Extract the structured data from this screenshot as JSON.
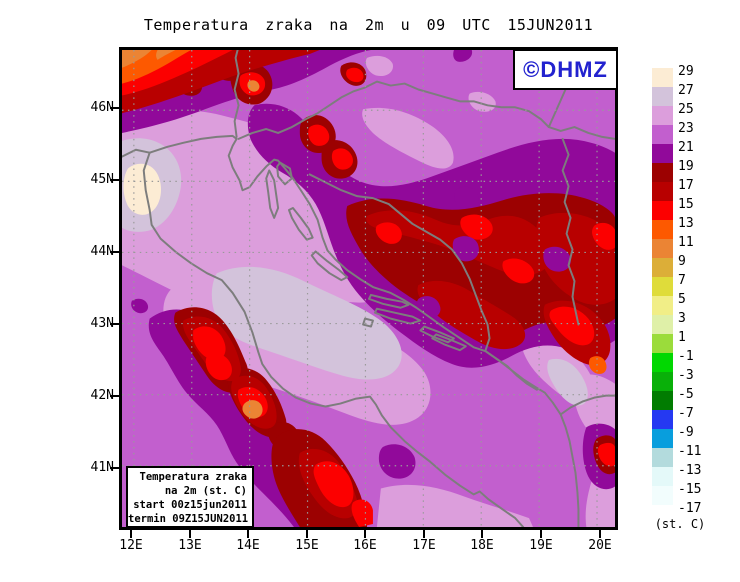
{
  "title": "Temperatura zraka na 2m u 09 UTC 15JUN2011",
  "logo": {
    "text": "©DHMZ",
    "color": "#2222cf"
  },
  "info_box": {
    "lines": [
      "Temperatura zraka",
      "na 2m (st. C)",
      "start 00z15jun2011",
      "termin 09Z15JUN2011"
    ]
  },
  "axes": {
    "lat_ticks": [
      "46N",
      "45N",
      "44N",
      "43N",
      "42N",
      "41N"
    ],
    "lon_ticks": [
      "12E",
      "13E",
      "14E",
      "15E",
      "16E",
      "17E",
      "18E",
      "19E",
      "20E"
    ]
  },
  "colorbar": {
    "unit_label": "(st. C)",
    "levels": [
      29,
      27,
      25,
      23,
      21,
      19,
      17,
      15,
      13,
      11,
      9,
      7,
      5,
      3,
      1,
      -1,
      -3,
      -5,
      -7,
      -9,
      -11,
      -13,
      -15,
      -17
    ],
    "colors": [
      "#fcecd4",
      "#d3c3db",
      "#dc9edc",
      "#c25fce",
      "#91099a",
      "#9c0101",
      "#b80000",
      "#fc0000",
      "#fd5900",
      "#eb8434",
      "#dcae38",
      "#dfdc3a",
      "#f1ee87",
      "#dff0a8",
      "#9bdc3b",
      "#01d801",
      "#09b009",
      "#017c01",
      "#2539f2",
      "#089edd",
      "#b3dbdd",
      "#e4f9f9",
      "#f2fdfd"
    ]
  },
  "map": {
    "coastline_color": "#7d7d7d",
    "grid_color": "#9a9a9a",
    "frame_color": "#000000"
  },
  "chart_data": {
    "type": "heatmap",
    "subtype": "filled_contour_weather_map",
    "title": "Temperatura zraka na 2m u 09 UTC 15JUN2011",
    "variable": "Air temperature at 2 m (st. C)",
    "init_time": "00z15jun2011",
    "valid_time": "09Z15JUN2011",
    "lon_range_deg_e": [
      11.8,
      20.3
    ],
    "lat_range_deg_n": [
      40.2,
      46.8
    ],
    "grid_interval_deg": 1,
    "contour_interval_c": 2,
    "levels_c": [
      -17,
      -15,
      -13,
      -11,
      -9,
      -7,
      -5,
      -3,
      -1,
      1,
      3,
      5,
      7,
      9,
      11,
      13,
      15,
      17,
      19,
      21,
      23,
      25,
      27,
      29
    ],
    "regions": [
      {
        "area": "Po valley, W edge near 12E 45N",
        "temp_c": "27-29"
      },
      {
        "area": "NE Italy / N Adriatic coast",
        "temp_c": "25-27"
      },
      {
        "area": "Central Adriatic sea west of lavender patch",
        "temp_c": "25-27"
      },
      {
        "area": "Adriatic sea and lowland Croatia (background)",
        "temp_c": "21-25"
      },
      {
        "area": "Alps, NW corner",
        "temp_c": "9-15"
      },
      {
        "area": "Dinaric mountains, Bosnia (centre-east)",
        "temp_c": "13-19"
      },
      {
        "area": "Gorski kotar / Velebit spots",
        "temp_c": "13-19"
      },
      {
        "area": "Apennines, Italy (SW diagonal chain)",
        "temp_c": "9-17"
      },
      {
        "area": "Montenegro / SE mountains",
        "temp_c": "11-19"
      }
    ]
  }
}
